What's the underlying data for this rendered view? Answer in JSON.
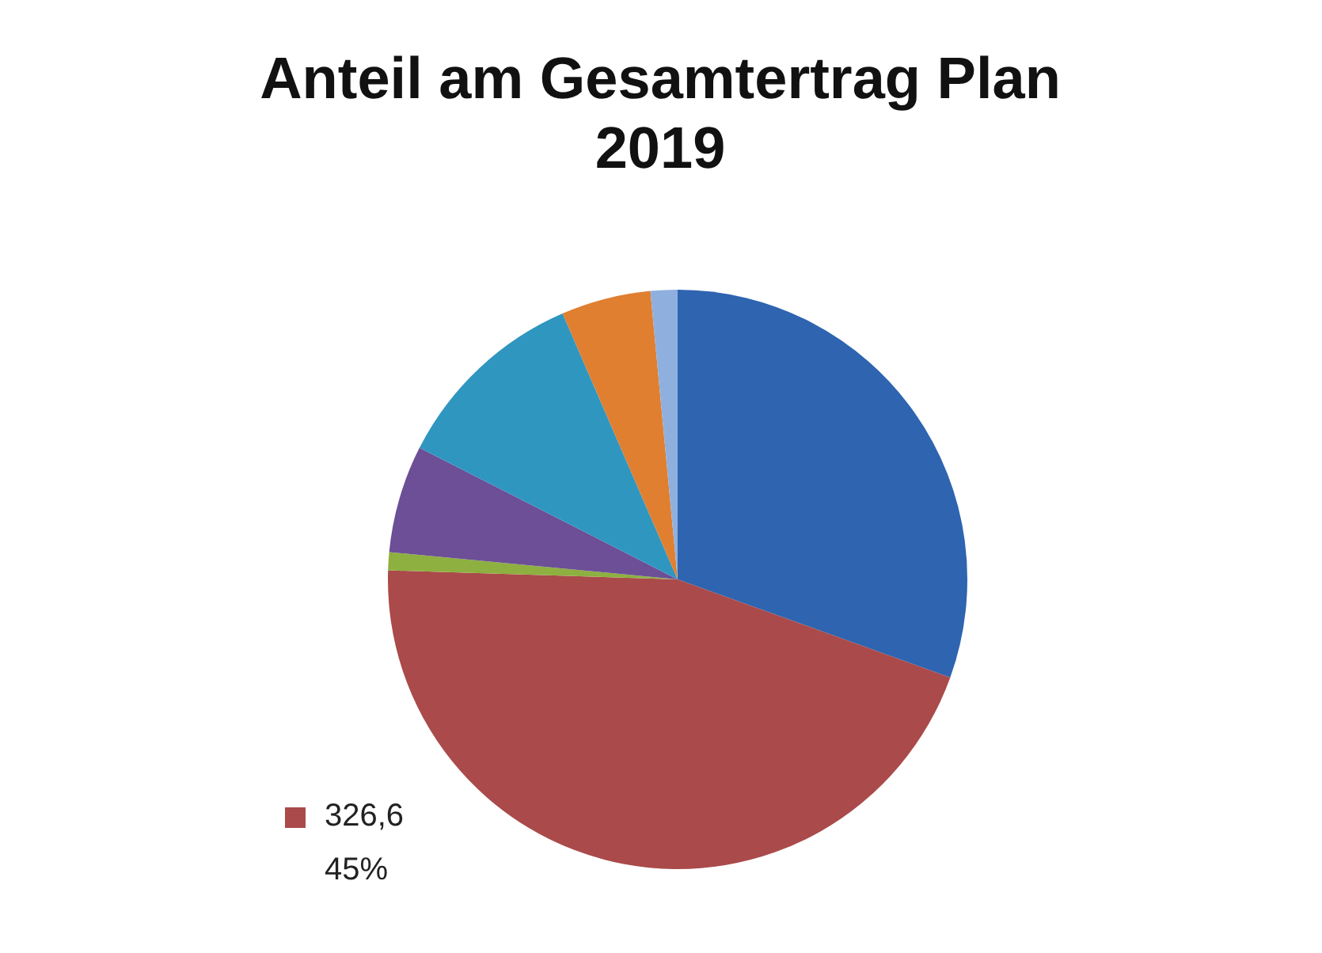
{
  "chart_data": {
    "type": "pie",
    "title": "Anteil am Gesamtertrag Plan 2019",
    "categories": [
      null,
      null,
      null,
      null,
      null,
      null,
      null
    ],
    "values": [
      30.5,
      45,
      1,
      6,
      11,
      5,
      1.5
    ],
    "colors": [
      "#2e64b0",
      "#aa4a4a",
      "#8db040",
      "#6c4f96",
      "#2f96bf",
      "#e07f30",
      "#8fb0de"
    ],
    "value_labels": [
      null,
      "326,6\n45%",
      null,
      null,
      null,
      null,
      null
    ],
    "legend": false
  }
}
